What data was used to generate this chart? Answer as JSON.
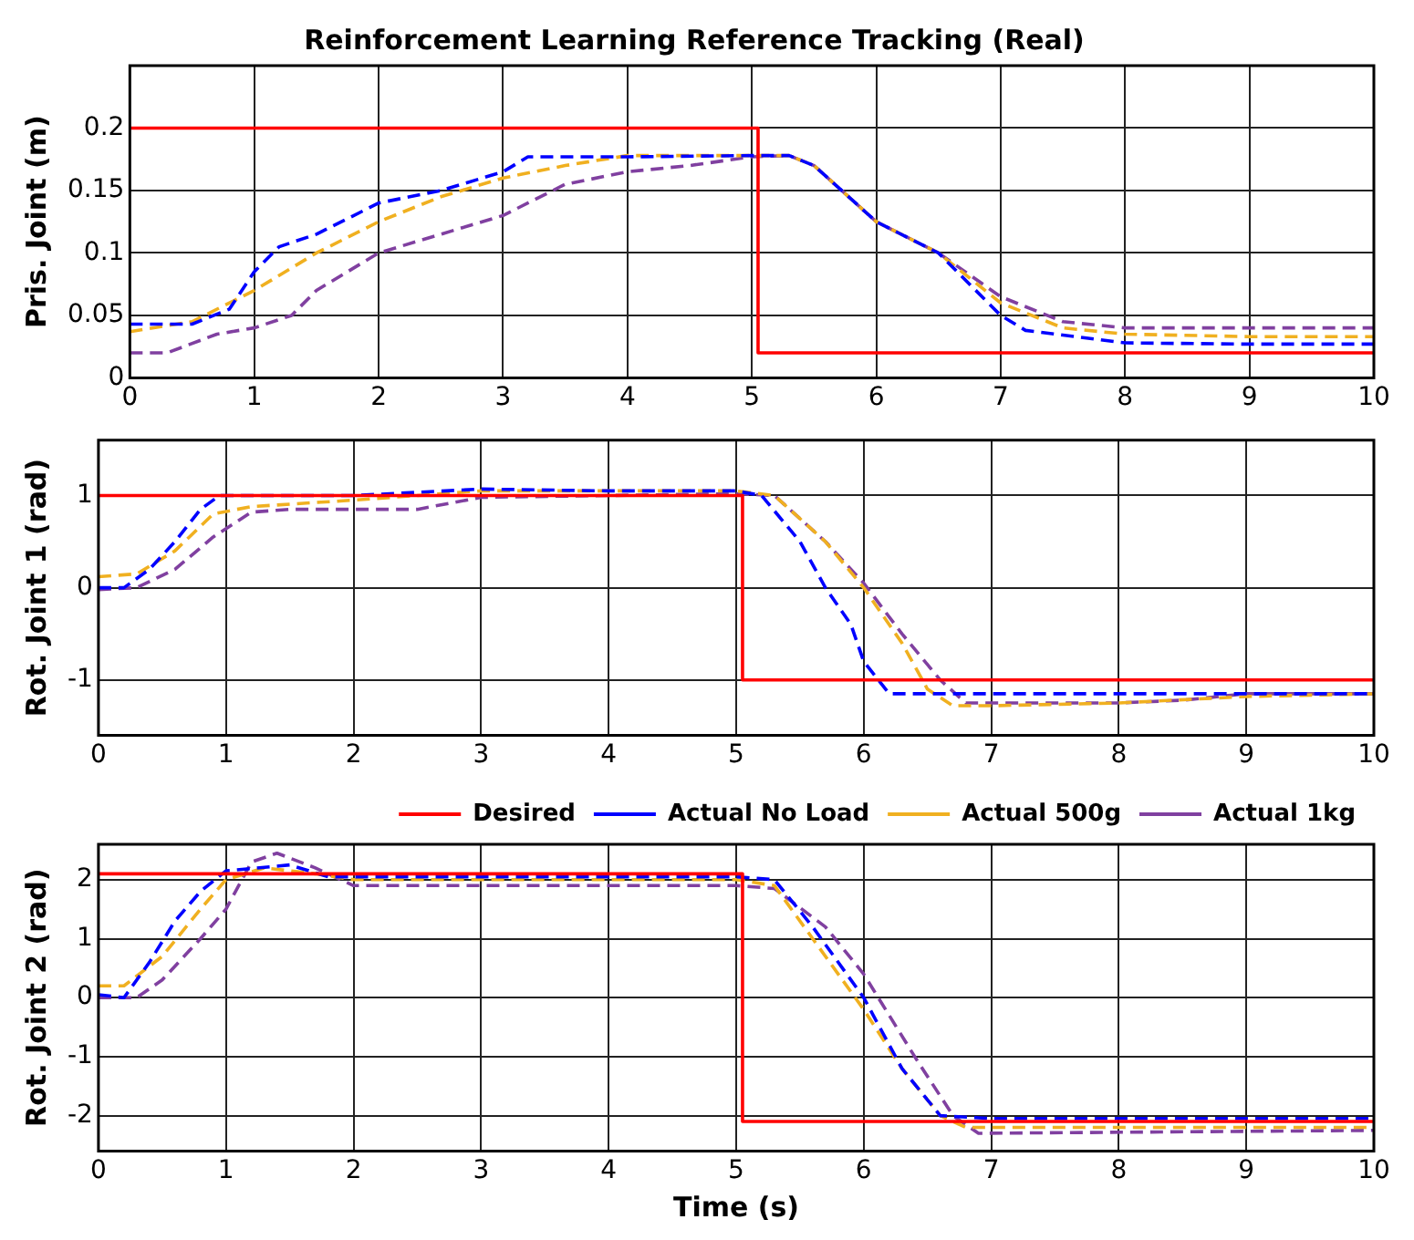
{
  "chart_data": [
    {
      "type": "line",
      "title": "Reinforcement Learning Reference Tracking (Real)",
      "ylabel": "Pris. Joint (m)",
      "xlim": [
        0,
        10
      ],
      "xticks": [
        0,
        1,
        2,
        3,
        4,
        5,
        6,
        7,
        8,
        9,
        10
      ],
      "ylim": [
        0,
        0.25
      ],
      "yticks": [
        0,
        0.05,
        0.1,
        0.15,
        0.2
      ],
      "grid": true,
      "marker": "none",
      "series": [
        {
          "color": "#ff0000",
          "line_style": "solid",
          "x": [
            0,
            5.05,
            5.05,
            10
          ],
          "values": [
            0.2,
            0.2,
            0.02,
            0.02
          ]
        },
        {
          "color": "#0000ff",
          "line_style": "dashed",
          "x": [
            0,
            0.5,
            0.8,
            1.0,
            1.2,
            1.5,
            2,
            2.5,
            3,
            3.2,
            4,
            5,
            5.3,
            5.5,
            6,
            6.5,
            7,
            7.2,
            8,
            9,
            10
          ],
          "values": [
            0.043,
            0.043,
            0.055,
            0.085,
            0.105,
            0.115,
            0.14,
            0.15,
            0.165,
            0.177,
            0.177,
            0.178,
            0.178,
            0.17,
            0.125,
            0.1,
            0.05,
            0.038,
            0.028,
            0.027,
            0.027
          ]
        },
        {
          "color": "#f0b020",
          "line_style": "dashed",
          "x": [
            0,
            0.5,
            1,
            1.5,
            2,
            2.5,
            3,
            3.5,
            4,
            5,
            5.3,
            5.5,
            6,
            6.5,
            7,
            7.5,
            8,
            9,
            10
          ],
          "values": [
            0.037,
            0.045,
            0.07,
            0.1,
            0.125,
            0.145,
            0.16,
            0.17,
            0.178,
            0.178,
            0.178,
            0.17,
            0.125,
            0.1,
            0.06,
            0.04,
            0.035,
            0.033,
            0.033
          ]
        },
        {
          "color": "#8040a0",
          "line_style": "dashed",
          "x": [
            0,
            0.3,
            0.7,
            1,
            1.3,
            1.5,
            2,
            2.5,
            3,
            3.5,
            4,
            4.5,
            5,
            5.3,
            5.5,
            6,
            6.5,
            7,
            7.5,
            8,
            10
          ],
          "values": [
            0.02,
            0.02,
            0.035,
            0.04,
            0.05,
            0.07,
            0.1,
            0.115,
            0.13,
            0.155,
            0.165,
            0.17,
            0.177,
            0.178,
            0.17,
            0.125,
            0.1,
            0.065,
            0.045,
            0.04,
            0.04
          ]
        }
      ]
    },
    {
      "type": "line",
      "ylabel": "Rot. Joint 1 (rad)",
      "xlim": [
        0,
        10
      ],
      "xticks": [
        0,
        1,
        2,
        3,
        4,
        5,
        6,
        7,
        8,
        9,
        10
      ],
      "ylim": [
        -1.6,
        1.6
      ],
      "yticks": [
        -1,
        0,
        1
      ],
      "grid": true,
      "marker": "none",
      "series": [
        {
          "color": "#ff0000",
          "line_style": "solid",
          "x": [
            0,
            5.05,
            5.05,
            10
          ],
          "values": [
            1,
            1,
            -1,
            -1
          ]
        },
        {
          "color": "#0000ff",
          "line_style": "dashed",
          "x": [
            0,
            0.2,
            0.4,
            0.6,
            0.8,
            0.95,
            2,
            3,
            4,
            5,
            5.2,
            5.5,
            5.7,
            5.9,
            6.0,
            6.2,
            7,
            9,
            10
          ],
          "values": [
            0,
            0,
            0.2,
            0.5,
            0.85,
            1.0,
            1.0,
            1.07,
            1.05,
            1.05,
            1.0,
            0.5,
            0,
            -0.4,
            -0.8,
            -1.15,
            -1.15,
            -1.15,
            -1.15
          ]
        },
        {
          "color": "#f0b020",
          "line_style": "dashed",
          "x": [
            0,
            0.3,
            0.6,
            0.9,
            1.2,
            2,
            2.5,
            3,
            4,
            5,
            5.3,
            5.7,
            6,
            6.3,
            6.5,
            6.7,
            7,
            8,
            9,
            10
          ],
          "values": [
            0.12,
            0.15,
            0.4,
            0.8,
            0.88,
            0.95,
            1.0,
            1.05,
            1.05,
            1.05,
            1.0,
            0.5,
            0,
            -0.6,
            -1.1,
            -1.28,
            -1.28,
            -1.25,
            -1.18,
            -1.15
          ]
        },
        {
          "color": "#8040a0",
          "line_style": "dashed",
          "x": [
            0,
            0.3,
            0.6,
            0.9,
            1.2,
            1.5,
            2.5,
            3,
            4,
            5,
            5.3,
            5.7,
            6,
            6.3,
            6.6,
            6.8,
            8,
            8.5,
            9,
            10
          ],
          "values": [
            -0.02,
            0,
            0.2,
            0.55,
            0.82,
            0.85,
            0.85,
            0.98,
            1.0,
            1.02,
            1.0,
            0.5,
            0.05,
            -0.5,
            -1.0,
            -1.25,
            -1.25,
            -1.22,
            -1.15,
            -1.15
          ]
        }
      ]
    },
    {
      "type": "line",
      "ylabel": "Rot. Joint 2 (rad)",
      "xlabel": "Time (s)",
      "xlim": [
        0,
        10
      ],
      "xticks": [
        0,
        1,
        2,
        3,
        4,
        5,
        6,
        7,
        8,
        9,
        10
      ],
      "ylim": [
        -2.6,
        2.6
      ],
      "yticks": [
        -2,
        -1,
        0,
        1,
        2
      ],
      "grid": true,
      "marker": "none",
      "legend": "top right",
      "series": [
        {
          "name": "Desired",
          "color": "#ff0000",
          "line_style": "solid",
          "x": [
            0,
            5.05,
            5.05,
            10
          ],
          "values": [
            2.1,
            2.1,
            -2.1,
            -2.1
          ]
        },
        {
          "name": "Actual No Load",
          "color": "#0000ff",
          "line_style": "dashed",
          "x": [
            0,
            0.2,
            0.4,
            0.6,
            0.8,
            1,
            1.5,
            1.8,
            2,
            5,
            5.3,
            5.6,
            6,
            6.3,
            6.6,
            7,
            10
          ],
          "values": [
            0.05,
            0,
            0.6,
            1.3,
            1.8,
            2.15,
            2.25,
            2.05,
            2.05,
            2.05,
            2.0,
            1.2,
            0,
            -1.2,
            -2.0,
            -2.05,
            -2.05
          ]
        },
        {
          "name": "Actual 500g",
          "color": "#f0b020",
          "line_style": "dashed",
          "x": [
            0,
            0.2,
            0.5,
            0.8,
            1,
            1.3,
            1.7,
            2,
            5,
            5.3,
            5.6,
            6,
            6.3,
            6.6,
            6.8,
            10
          ],
          "values": [
            0.2,
            0.2,
            0.7,
            1.5,
            2.0,
            2.2,
            2.1,
            2.0,
            2.0,
            1.9,
            1.0,
            -0.2,
            -1.2,
            -2.0,
            -2.2,
            -2.2
          ]
        },
        {
          "name": "Actual 1kg",
          "color": "#8040a0",
          "line_style": "dashed",
          "x": [
            0,
            0.3,
            0.5,
            0.8,
            1,
            1.2,
            1.4,
            1.7,
            2,
            5,
            5.3,
            5.7,
            6,
            6.4,
            6.7,
            6.9,
            10
          ],
          "values": [
            0,
            0,
            0.3,
            1.0,
            1.5,
            2.3,
            2.45,
            2.2,
            1.9,
            1.9,
            1.85,
            1.2,
            0.4,
            -1.0,
            -2.0,
            -2.3,
            -2.25
          ]
        }
      ]
    }
  ]
}
